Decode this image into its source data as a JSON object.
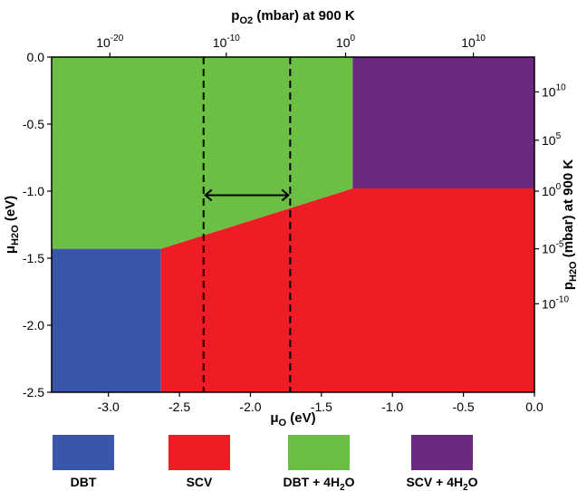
{
  "chart_data": {
    "type": "area",
    "xlabel": "μO (eV)",
    "ylabel": "μH2O (eV)",
    "top_xlabel": "pO2 (mbar) at 900 K",
    "right_ylabel": "pH2O (mbar) at 900 K",
    "xlim": [
      -3.4,
      0.0
    ],
    "ylim": [
      -2.5,
      0.0
    ],
    "xticks": [
      -3.0,
      -2.5,
      -2.0,
      -1.5,
      -1.0,
      -0.5,
      0.0
    ],
    "xtick_labels": [
      "-3.0",
      "-2.5",
      "-2.0",
      "-1.5",
      "-1.0",
      "-0.5",
      "0.0"
    ],
    "yticks": [
      0.0,
      -0.5,
      -1.0,
      -1.5,
      -2.0,
      -2.5
    ],
    "ytick_labels": [
      "0.0",
      "-0.5",
      "-1.0",
      "-1.5",
      "-2.0",
      "-2.5"
    ],
    "top_ticks": [
      {
        "x": -2.99,
        "base": "10",
        "exp": "-20"
      },
      {
        "x": -2.17,
        "base": "10",
        "exp": "-10"
      },
      {
        "x": -1.33,
        "base": "10",
        "exp": "0"
      },
      {
        "x": -0.43,
        "base": "10",
        "exp": "10"
      }
    ],
    "right_ticks": [
      {
        "y": -0.26,
        "base": "10",
        "exp": "10"
      },
      {
        "y": -0.62,
        "base": "10",
        "exp": "5"
      },
      {
        "y": -1.0,
        "base": "10",
        "exp": "0"
      },
      {
        "y": -1.43,
        "base": "10",
        "exp": "-5"
      },
      {
        "y": -1.84,
        "base": "10",
        "exp": "-10"
      }
    ],
    "regions": [
      {
        "name": "DBT",
        "color": "#3a56a8",
        "points": [
          [
            -3.4,
            -1.43
          ],
          [
            -2.63,
            -1.43
          ],
          [
            -2.63,
            -2.5
          ],
          [
            -3.4,
            -2.5
          ]
        ]
      },
      {
        "name": "SCV",
        "color": "#ee1c24",
        "points": [
          [
            -2.63,
            -1.43
          ],
          [
            -2.63,
            -2.5
          ],
          [
            0.0,
            -2.5
          ],
          [
            0.0,
            -0.98
          ],
          [
            -1.28,
            -0.98
          ]
        ]
      },
      {
        "name": "DBT + 4H2O",
        "color": "#6cbf45",
        "points": [
          [
            -3.4,
            0.0
          ],
          [
            -1.28,
            0.0
          ],
          [
            -1.28,
            -0.98
          ],
          [
            -2.63,
            -1.43
          ],
          [
            -3.4,
            -1.43
          ]
        ]
      },
      {
        "name": "SCV + 4H2O",
        "color": "#6a2a7f",
        "points": [
          [
            -1.28,
            0.0
          ],
          [
            0.0,
            0.0
          ],
          [
            0.0,
            -0.98
          ],
          [
            -1.28,
            -0.98
          ]
        ]
      }
    ],
    "vertical_lines": [
      -2.33,
      -1.72
    ],
    "arrow": {
      "x1": -2.33,
      "x2": -1.72,
      "y": -1.03
    },
    "legend": [
      {
        "label": "DBT",
        "color": "#3a56a8"
      },
      {
        "label": "SCV",
        "color": "#ee1c24"
      },
      {
        "label": "DBT + 4H2O",
        "color": "#6cbf45"
      },
      {
        "label": "SCV + 4H2O",
        "color": "#6a2a7f"
      }
    ]
  }
}
